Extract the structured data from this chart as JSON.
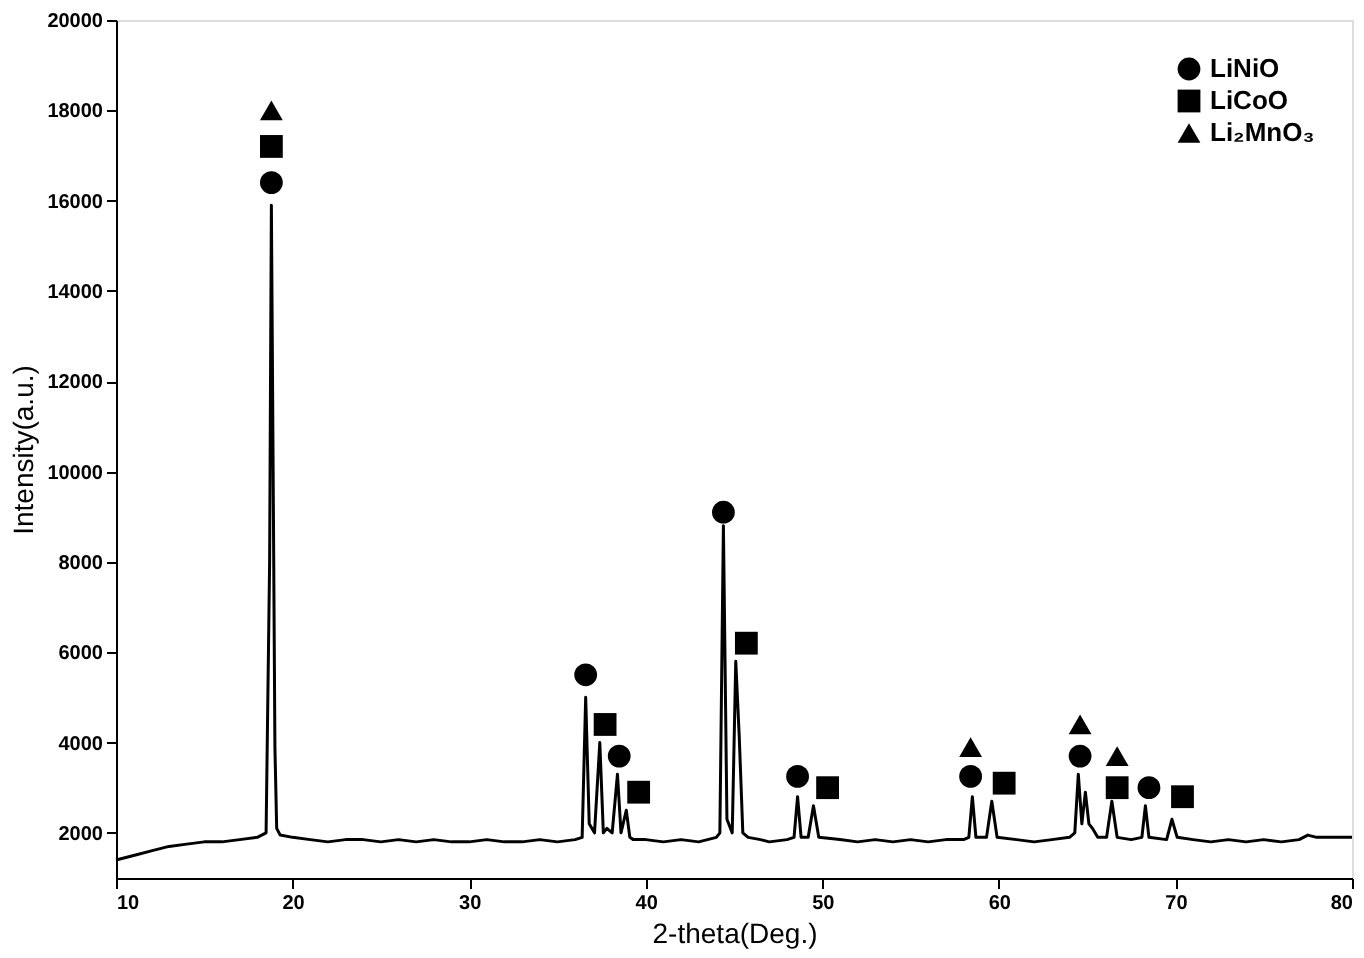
{
  "chart_data": {
    "type": "line",
    "xlabel": "2-theta(Deg.)",
    "ylabel": "Intensity(a.u.)",
    "xlim": [
      10,
      80
    ],
    "xticks": [
      10,
      20,
      30,
      40,
      50,
      60,
      70,
      80
    ],
    "ylim": [
      1000,
      20000
    ],
    "yticks": [
      2000,
      4000,
      6000,
      8000,
      10000,
      12000,
      14000,
      16000,
      18000,
      20000
    ],
    "grid": false,
    "legend": "top right",
    "series": [
      {
        "color": "#000000",
        "marker": "none",
        "line_style": "solid",
        "x": [
          10,
          11,
          12,
          13,
          14,
          15,
          16,
          17,
          18,
          18.5,
          18.7,
          18.8,
          18.9,
          19.0,
          19.1,
          19.3,
          20,
          21,
          22,
          23,
          24,
          25,
          26,
          27,
          28,
          29,
          30,
          31,
          32,
          33,
          34,
          35,
          36,
          36.4,
          36.6,
          36.8,
          37.1,
          37.4,
          37.6,
          37.8,
          38.1,
          38.4,
          38.6,
          38.9,
          39.1,
          39.3,
          40,
          41,
          42,
          43,
          44,
          44.2,
          44.4,
          44.6,
          44.9,
          45.1,
          45.3,
          45.5,
          45.8,
          46.5,
          47,
          48,
          48.4,
          48.6,
          48.8,
          49.2,
          49.5,
          49.8,
          51,
          52,
          53,
          54,
          55,
          56,
          57,
          58,
          58.3,
          58.5,
          58.7,
          59.3,
          59.6,
          59.9,
          61,
          62,
          63,
          64,
          64.3,
          64.5,
          64.7,
          64.9,
          65.1,
          65.3,
          65.6,
          66.1,
          66.4,
          66.7,
          67.5,
          68.1,
          68.3,
          68.5,
          69.5,
          69.8,
          70.1,
          71,
          72,
          73,
          74,
          75,
          76,
          77,
          77.5,
          78,
          79,
          80
        ],
        "values": [
          1400,
          1500,
          1600,
          1700,
          1750,
          1800,
          1800,
          1850,
          1900,
          2000,
          8000,
          15900,
          10000,
          3900,
          2100,
          1950,
          1900,
          1850,
          1800,
          1850,
          1850,
          1800,
          1850,
          1800,
          1850,
          1800,
          1800,
          1850,
          1800,
          1800,
          1850,
          1800,
          1850,
          1900,
          5000,
          2200,
          2000,
          4000,
          2000,
          2100,
          2000,
          3300,
          2000,
          2500,
          1900,
          1850,
          1850,
          1800,
          1850,
          1800,
          1900,
          2000,
          8800,
          2300,
          2000,
          5800,
          4100,
          2000,
          1900,
          1850,
          1800,
          1850,
          1900,
          2800,
          1900,
          1900,
          2600,
          1900,
          1850,
          1800,
          1850,
          1800,
          1850,
          1800,
          1850,
          1850,
          1900,
          2800,
          1900,
          1900,
          2700,
          1900,
          1850,
          1800,
          1850,
          1900,
          2000,
          3300,
          2200,
          2900,
          2200,
          2100,
          1900,
          1900,
          2700,
          1900,
          1850,
          1900,
          2600,
          1900,
          1850,
          2300,
          1900,
          1850,
          1800,
          1850,
          1800,
          1850,
          1800,
          1850,
          1950,
          1900,
          1900,
          1900
        ]
      },
      {
        "type": "scatter",
        "name": "LiNiO",
        "color": "#000000",
        "marker": "circle",
        "x": [
          18.8,
          36.6,
          38.5,
          44.4,
          48.6,
          58.4,
          64.6,
          68.5
        ],
        "values": [
          16400,
          5500,
          3700,
          9100,
          3250,
          3250,
          3700,
          3000
        ]
      },
      {
        "type": "scatter",
        "name": "LiCoO",
        "color": "#000000",
        "marker": "square",
        "x": [
          18.8,
          37.7,
          39.6,
          45.7,
          50.3,
          60.3,
          66.7,
          70.4
        ],
        "values": [
          17200,
          4400,
          2900,
          6200,
          3000,
          3100,
          3000,
          2800
        ]
      },
      {
        "type": "scatter",
        "name": "Li₂MnO₃",
        "color": "#000000",
        "marker": "triangle",
        "x": [
          18.8,
          58.4,
          64.6,
          66.7
        ],
        "values": [
          18000,
          3900,
          4400,
          3700
        ]
      }
    ]
  }
}
